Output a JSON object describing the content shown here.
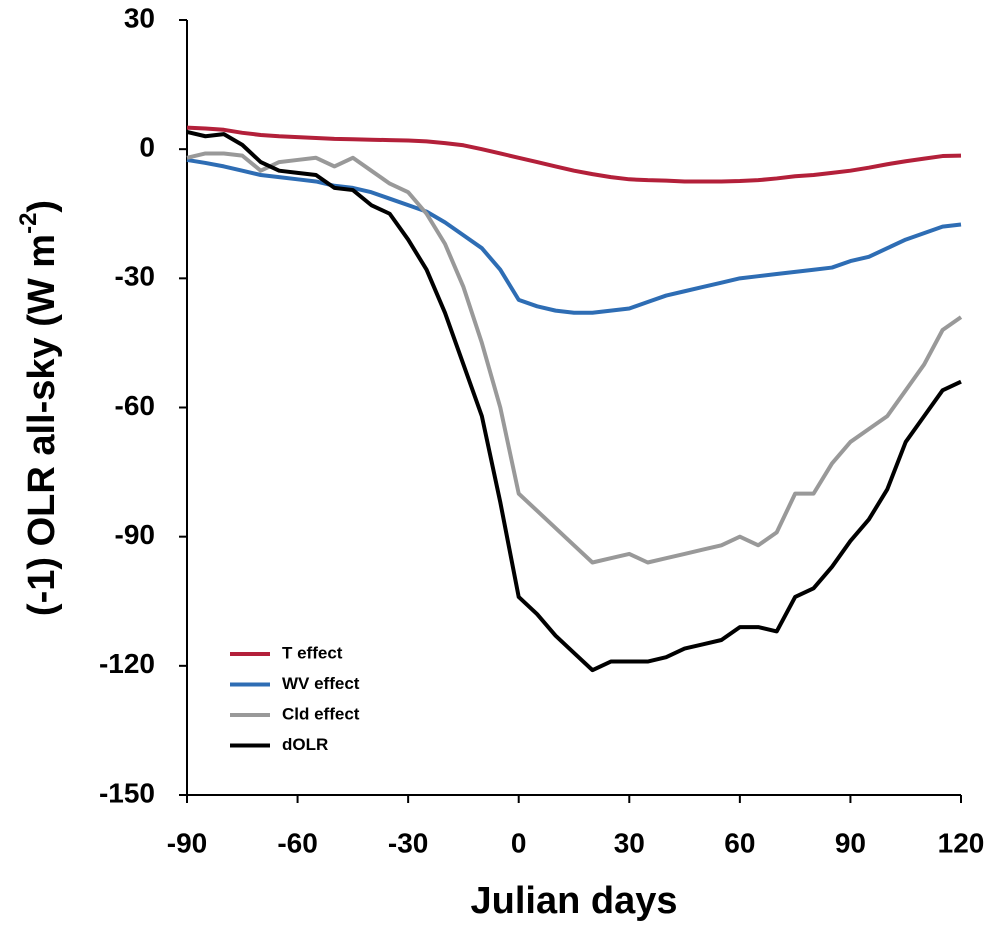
{
  "chart_data": {
    "type": "line",
    "xlabel": "Julian days",
    "ylabel": [
      "(-1) OLR all-sky (W m",
      "-2",
      ")"
    ],
    "x": [
      -90,
      -85,
      -80,
      -75,
      -70,
      -65,
      -60,
      -55,
      -50,
      -45,
      -40,
      -35,
      -30,
      -25,
      -20,
      -15,
      -10,
      -5,
      0,
      5,
      10,
      15,
      20,
      25,
      30,
      35,
      40,
      45,
      50,
      55,
      60,
      65,
      70,
      75,
      80,
      85,
      90,
      95,
      100,
      105,
      110,
      115,
      120
    ],
    "series": [
      {
        "name": "T effect",
        "color": "#b3203a",
        "values": [
          5,
          4.8,
          4.5,
          3.8,
          3.3,
          3,
          2.8,
          2.6,
          2.4,
          2.3,
          2.2,
          2.1,
          2,
          1.8,
          1.4,
          0.9,
          0,
          -1,
          -2,
          -3,
          -4,
          -5,
          -5.8,
          -6.5,
          -7,
          -7.2,
          -7.3,
          -7.5,
          -7.5,
          -7.5,
          -7.4,
          -7.2,
          -6.8,
          -6.3,
          -6,
          -5.5,
          -5,
          -4.3,
          -3.5,
          -2.8,
          -2.2,
          -1.6,
          -1.5
        ]
      },
      {
        "name": "WV effect",
        "color": "#2e6db4",
        "values": [
          -2.5,
          -3.2,
          -4,
          -5,
          -6,
          -6.5,
          -7,
          -7.5,
          -8.5,
          -9,
          -10,
          -11.5,
          -13,
          -14.5,
          -17,
          -20,
          -23,
          -28,
          -35,
          -36.5,
          -37.5,
          -38,
          -38,
          -37.5,
          -37,
          -35.5,
          -34,
          -33,
          -32,
          -31,
          -30,
          -29.5,
          -29,
          -28.5,
          -28,
          -27.5,
          -26,
          -25,
          -23,
          -21,
          -19.5,
          -18,
          -17.5
        ]
      },
      {
        "name": "Cld effect",
        "color": "#999999",
        "values": [
          -2,
          -1,
          -1,
          -1.5,
          -5,
          -3,
          -2.5,
          -2,
          -4,
          -2,
          -5,
          -8,
          -10,
          -15,
          -22,
          -32,
          -45,
          -60,
          -80,
          -84,
          -88,
          -92,
          -96,
          -95,
          -94,
          -96,
          -95,
          -94,
          -93,
          -92,
          -90,
          -92,
          -89,
          -80,
          -80,
          -73,
          -68,
          -65,
          -62,
          -56,
          -50,
          -42,
          -39
        ]
      },
      {
        "name": "dOLR",
        "color": "#000000",
        "values": [
          4,
          3,
          3.5,
          1,
          -3,
          -5,
          -5.5,
          -6,
          -9,
          -9.5,
          -13,
          -15,
          -21,
          -28,
          -38,
          -50,
          -62,
          -82,
          -104,
          -108,
          -113,
          -117,
          -121,
          -119,
          -119,
          -119,
          -118,
          -116,
          -115,
          -114,
          -111,
          -111,
          -112,
          -104,
          -102,
          -97,
          -91,
          -86,
          -79,
          -68,
          -62,
          -56,
          -54
        ]
      }
    ],
    "xlim": [
      -90,
      120
    ],
    "xticks": [
      -90,
      -60,
      -30,
      0,
      30,
      60,
      90,
      120
    ],
    "ylim": [
      -150,
      30
    ],
    "yticks": [
      -150,
      -120,
      -90,
      -60,
      -30,
      0,
      30
    ],
    "legend": "lower left"
  }
}
